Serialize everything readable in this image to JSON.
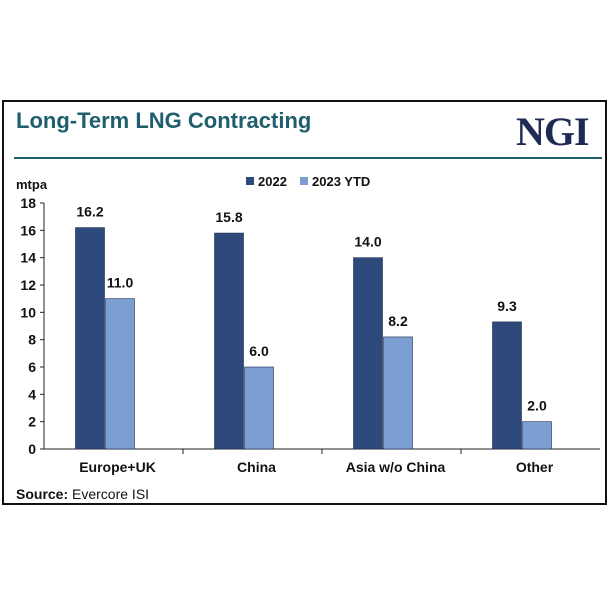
{
  "header": {
    "title": "Long-Term LNG Contracting",
    "logo_text": "NGI"
  },
  "source": {
    "label": "Source:",
    "text": "Evercore ISI"
  },
  "colors": {
    "title": "#1f5f6d",
    "series_2022": "#2e4a7d",
    "series_2023": "#7b9fd3",
    "logo": "#1f2a55"
  },
  "chart_data": {
    "type": "bar",
    "title": "Long-Term LNG Contracting",
    "ylabel": "mtpa",
    "xlabel": "",
    "ylim": [
      0,
      18
    ],
    "yticks": [
      0,
      2,
      4,
      6,
      8,
      10,
      12,
      14,
      16,
      18
    ],
    "grid": false,
    "legend_position": "top-center",
    "categories": [
      "Europe+UK",
      "China",
      "Asia w/o China",
      "Other"
    ],
    "series": [
      {
        "name": "2022",
        "values": [
          16.2,
          15.8,
          14.0,
          9.3
        ],
        "labels": [
          "16.2",
          "15.8",
          "14.0",
          "9.3"
        ]
      },
      {
        "name": "2023 YTD",
        "values": [
          11.0,
          6.0,
          8.2,
          2.0
        ],
        "labels": [
          "11.0",
          "6.0",
          "8.2",
          "2.0"
        ]
      }
    ]
  }
}
